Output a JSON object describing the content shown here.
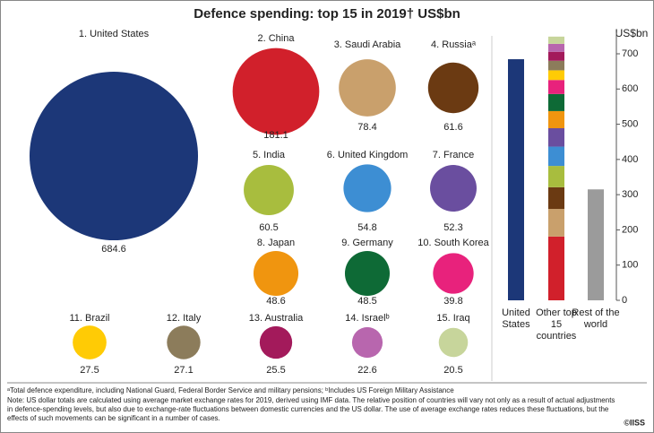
{
  "chart_data": [
    {
      "type": "bubble",
      "title": "Defence spending: top 15 in 2019† US$bn",
      "categories": [
        "1. United States",
        "2. China",
        "3. Saudi Arabia",
        "4. Russiaᵃ",
        "5. India",
        "6. United Kingdom",
        "7. France",
        "8. Japan",
        "9. Germany",
        "10. South Korea",
        "11. Brazil",
        "12. Italy",
        "13. Australia",
        "14. Israelᵇ",
        "15. Iraq"
      ],
      "values": [
        684.6,
        181.1,
        78.4,
        61.6,
        60.5,
        54.8,
        52.3,
        48.6,
        48.5,
        39.8,
        27.5,
        27.1,
        25.5,
        22.6,
        20.5
      ],
      "colors": [
        "#1c3778",
        "#d1202b",
        "#c9a06c",
        "#6b3a12",
        "#a8bd3e",
        "#3d8ed3",
        "#6a4e9f",
        "#f0950f",
        "#0e6a36",
        "#e8227c",
        "#ffcb05",
        "#8c7c5b",
        "#a31a5b",
        "#b866ae",
        "#c7d59b"
      ],
      "footnotes": [
        "ᵃTotal defence expenditure, including National Guard, Federal Border Service and military pensions; ᵇIncludes US Foreign Military Assistance",
        "Note: US dollar totals are calculated using average market exchange rates for 2019, derived using IMF data. The relative position of countries will vary not only as a result of actual adjustments in defence-spending levels, but also due to exchange-rate fluctuations between domestic currencies and the US dollar. The use of average exchange rates reduces these fluctuations, but the effects of such movements can be significant in a number of cases."
      ],
      "source": "©IISS"
    },
    {
      "type": "stacked_bar",
      "y_label": "US$bn",
      "categories": [
        "United States",
        "Other top 15 countries",
        "Rest of the world"
      ],
      "rest_of_world_value": 315,
      "rest_color": "#9b9b9b",
      "ylim": [
        0,
        760
      ],
      "yticks": [
        0,
        100,
        200,
        300,
        400,
        500,
        600,
        700
      ]
    }
  ]
}
